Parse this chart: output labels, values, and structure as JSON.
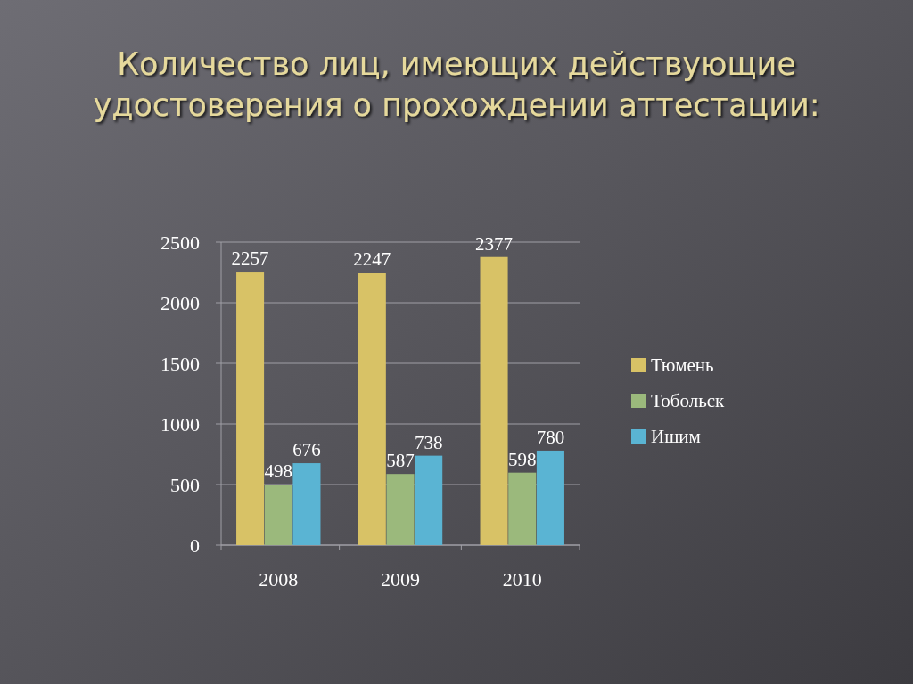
{
  "chart_data": {
    "type": "bar",
    "title": "Количество лиц, имеющих действующие удостоверения о прохождении аттестации:",
    "categories": [
      "2008",
      "2009",
      "2010"
    ],
    "series": [
      {
        "name": "Тюмень",
        "color": "#d8c266",
        "values": [
          2257,
          2247,
          2377
        ]
      },
      {
        "name": "Тобольск",
        "color": "#9bb97c",
        "values": [
          498,
          587,
          598
        ]
      },
      {
        "name": "Ишим",
        "color": "#5ab4d3",
        "values": [
          676,
          738,
          780
        ]
      }
    ],
    "ylim": [
      0,
      2500
    ],
    "yticks": [
      0,
      500,
      1000,
      1500,
      2000,
      2500
    ],
    "grid": "y",
    "legend": "right",
    "data_labels": true
  }
}
